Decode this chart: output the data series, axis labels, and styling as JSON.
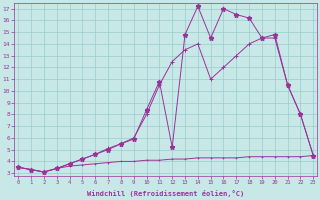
{
  "bg_color": "#c8e8e8",
  "line_color": "#993399",
  "grid_color": "#99cccc",
  "xlabel": "Windchill (Refroidissement éolien,°C)",
  "x_ticks": [
    0,
    1,
    2,
    3,
    4,
    5,
    6,
    7,
    8,
    9,
    10,
    11,
    12,
    13,
    14,
    15,
    16,
    17,
    18,
    19,
    20,
    21,
    22,
    23
  ],
  "y_ticks": [
    3,
    4,
    5,
    6,
    7,
    8,
    9,
    10,
    11,
    12,
    13,
    14,
    15,
    16,
    17
  ],
  "s1_x": [
    0,
    1,
    2,
    3,
    4,
    5,
    6,
    7,
    8,
    9,
    10,
    11,
    12,
    13,
    14,
    15,
    16,
    17,
    18,
    19,
    20,
    21,
    22,
    23
  ],
  "s1_y": [
    3.5,
    3.3,
    3.1,
    3.4,
    3.8,
    4.2,
    4.6,
    5.0,
    5.5,
    5.9,
    8.4,
    10.8,
    5.2,
    14.8,
    17.2,
    14.5,
    17.0,
    16.5,
    16.2,
    14.5,
    14.8,
    10.5,
    8.0,
    4.5
  ],
  "s2_x": [
    0,
    1,
    2,
    3,
    4,
    5,
    6,
    7,
    8,
    9,
    10,
    11,
    12,
    13,
    14,
    15,
    16,
    17,
    18,
    19,
    20,
    21,
    22,
    23
  ],
  "s2_y": [
    3.5,
    3.3,
    3.1,
    3.4,
    3.8,
    4.2,
    4.6,
    5.1,
    5.5,
    6.0,
    8.0,
    10.5,
    12.5,
    13.5,
    14.0,
    11.0,
    12.0,
    13.0,
    14.0,
    14.5,
    14.5,
    10.5,
    8.0,
    4.5
  ],
  "s3_x": [
    0,
    1,
    2,
    3,
    4,
    5,
    6,
    7,
    8,
    9,
    10,
    11,
    12,
    13,
    14,
    15,
    16,
    17,
    18,
    19,
    20,
    21,
    22,
    23
  ],
  "s3_y": [
    3.5,
    3.3,
    3.1,
    3.4,
    3.6,
    3.7,
    3.8,
    3.9,
    4.0,
    4.0,
    4.1,
    4.1,
    4.2,
    4.2,
    4.3,
    4.3,
    4.3,
    4.3,
    4.4,
    4.4,
    4.4,
    4.4,
    4.4,
    4.5
  ]
}
